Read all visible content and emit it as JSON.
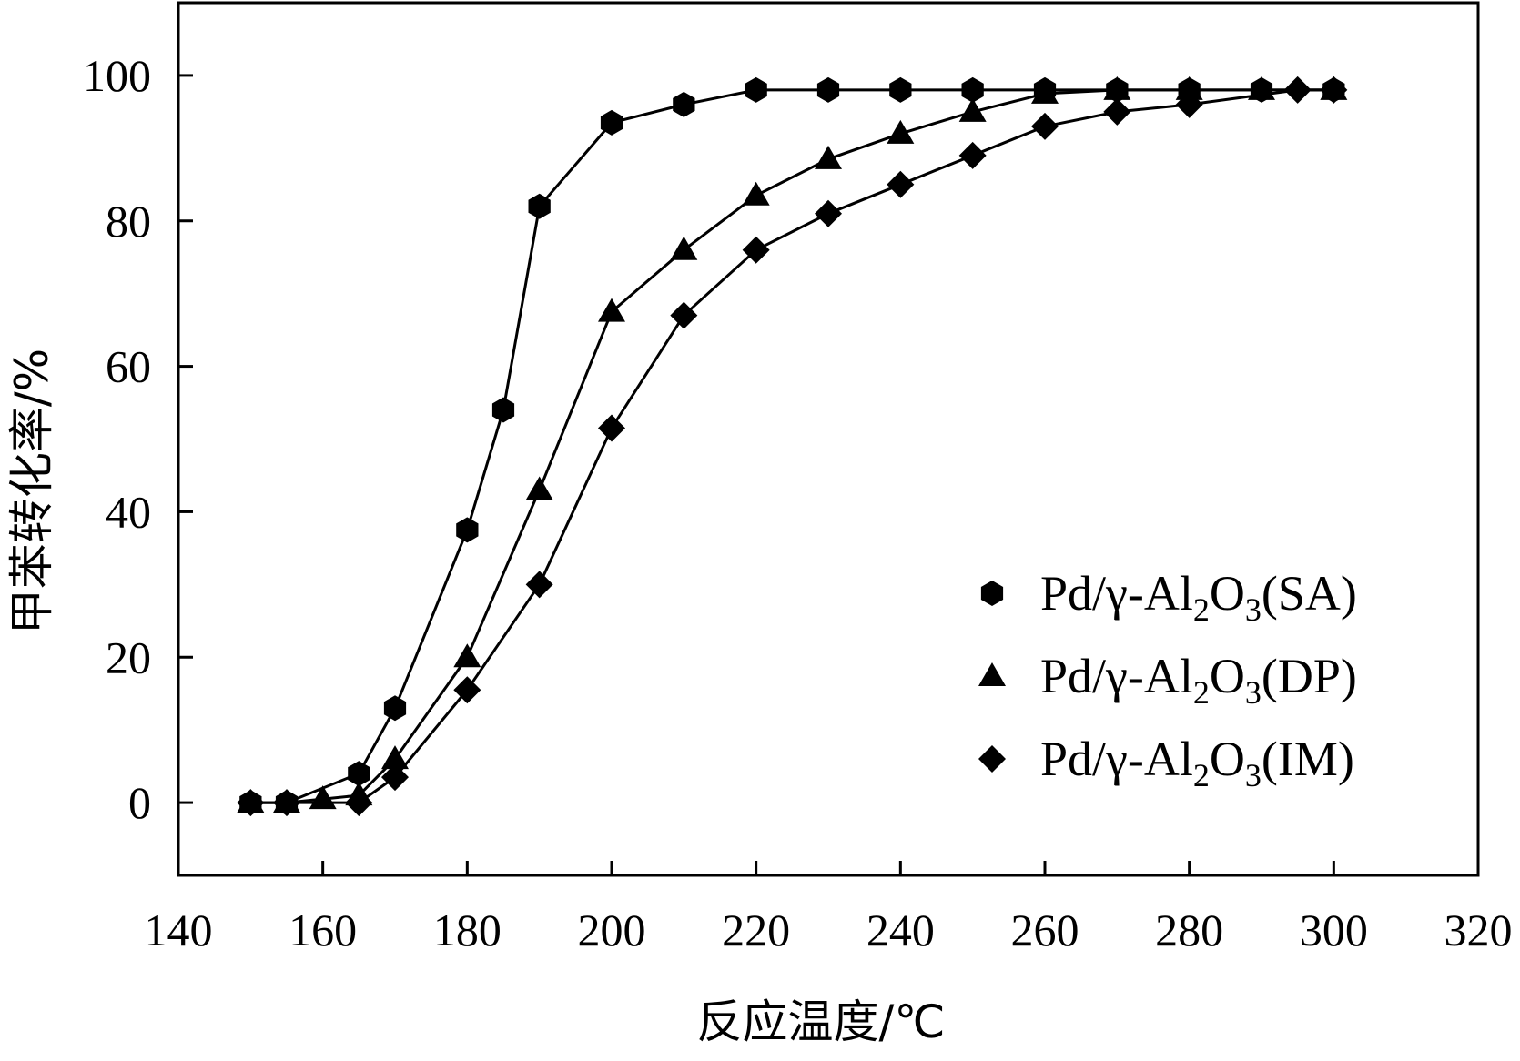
{
  "chart_data": {
    "type": "scatter",
    "xlabel": "反应温度/℃",
    "ylabel": "甲苯转化率/%",
    "xlim": [
      140,
      320
    ],
    "ylim": [
      -10,
      110
    ],
    "xticks": [
      140,
      160,
      180,
      200,
      220,
      240,
      260,
      280,
      300,
      320
    ],
    "yticks": [
      0,
      20,
      40,
      60,
      80,
      100
    ],
    "grid": false,
    "legend_position": "bottom-right",
    "connected_lines": true,
    "series": [
      {
        "name": "Pd/γ-Al2O3(SA)",
        "legend": {
          "prefix": "Pd/γ-Al",
          "sub1": "2",
          "mid": "O",
          "sub2": "3",
          "suffix": "(SA)"
        },
        "marker": "hexagon",
        "x": [
          150,
          155,
          165,
          170,
          180,
          185,
          190,
          200,
          210,
          220,
          230,
          240,
          250,
          260,
          270,
          280,
          290,
          300
        ],
        "y": [
          0,
          0,
          4,
          13,
          37.5,
          54,
          82,
          93.5,
          96,
          98,
          98,
          98,
          98,
          98,
          98,
          98,
          98,
          98
        ]
      },
      {
        "name": "Pd/γ-Al2O3(DP)",
        "legend": {
          "prefix": "Pd/γ-Al",
          "sub1": "2",
          "mid": "O",
          "sub2": "3",
          "suffix": "(DP)"
        },
        "marker": "triangle",
        "x": [
          150,
          155,
          160,
          165,
          170,
          180,
          190,
          200,
          210,
          220,
          230,
          240,
          250,
          260,
          270,
          280,
          290,
          300
        ],
        "y": [
          0,
          0,
          0.5,
          1,
          6,
          20,
          43,
          67.5,
          76,
          83.5,
          88.5,
          92,
          95,
          97.5,
          98,
          98,
          98,
          98
        ]
      },
      {
        "name": "Pd/γ-Al2O3(IM)",
        "legend": {
          "prefix": "Pd/γ-Al",
          "sub1": "2",
          "mid": "O",
          "sub2": "3",
          "suffix": "(IM)"
        },
        "marker": "diamond",
        "x": [
          150,
          155,
          165,
          170,
          180,
          190,
          200,
          210,
          220,
          230,
          240,
          250,
          260,
          270,
          280,
          295,
          300
        ],
        "y": [
          0,
          0,
          0,
          3.5,
          15.5,
          30,
          51.5,
          67,
          76,
          81,
          85,
          89,
          93,
          95,
          96,
          98,
          98
        ]
      }
    ]
  }
}
